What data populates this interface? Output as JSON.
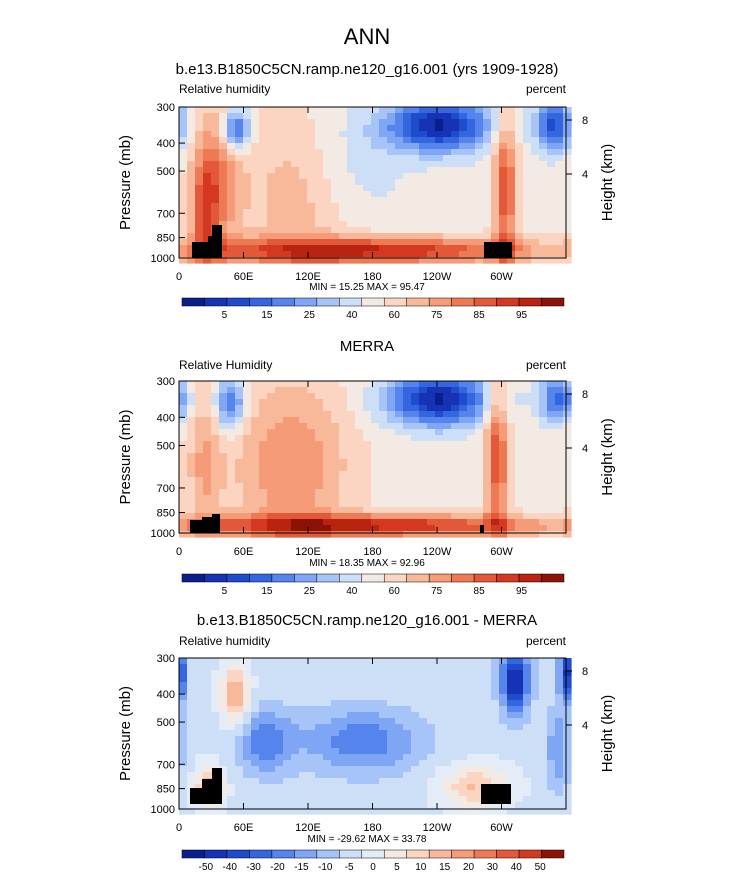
{
  "page": {
    "title": "ANN"
  },
  "chart_data": [
    {
      "type": "heatmap",
      "title": "b.e13.B1850C5CN.ramp.ne120_g16.001 (yrs 1909-1928)",
      "left_label": "Relative humidity",
      "right_label": "percent",
      "ylabel": "Pressure (mb)",
      "ylabel_right": "Height (km)",
      "yticks": [
        "300",
        "400",
        "500",
        "700",
        "850",
        "1000"
      ],
      "yticks_right": [
        "8",
        "4"
      ],
      "xticks": [
        "0",
        "60E",
        "120E",
        "180",
        "120W",
        "60W"
      ],
      "stats": "MIN =  15.25  MAX =  95.47",
      "colorbar": {
        "labels": [
          "5",
          "15",
          "25",
          "40",
          "60",
          "75",
          "85",
          "95"
        ],
        "colors": [
          "#0b1f8c",
          "#1533b4",
          "#1f4ccc",
          "#3466e0",
          "#5584ec",
          "#7ea6f5",
          "#a6c4f8",
          "#cddff7",
          "#f4eae4",
          "#fbd5c2",
          "#f8b99a",
          "#f59b77",
          "#ee7a55",
          "#e4583a",
          "#d43820",
          "#b82410",
          "#8d1206"
        ]
      },
      "values": "annual zonal-mean relative humidity cross-section (percent)"
    },
    {
      "type": "heatmap",
      "title": "MERRA",
      "left_label": "Relative Humidity",
      "right_label": "percent",
      "ylabel": "Pressure (mb)",
      "ylabel_right": "Height (km)",
      "yticks": [
        "300",
        "400",
        "500",
        "700",
        "850",
        "1000"
      ],
      "yticks_right": [
        "8",
        "4"
      ],
      "xticks": [
        "0",
        "60E",
        "120E",
        "180",
        "120W",
        "60W"
      ],
      "stats": "MIN =  18.35  MAX =  92.96",
      "colorbar": {
        "labels": [
          "5",
          "15",
          "25",
          "40",
          "60",
          "75",
          "85",
          "95"
        ],
        "colors": [
          "#0b1f8c",
          "#1533b4",
          "#1f4ccc",
          "#3466e0",
          "#5584ec",
          "#7ea6f5",
          "#a6c4f8",
          "#cddff7",
          "#f4eae4",
          "#fbd5c2",
          "#f8b99a",
          "#f59b77",
          "#ee7a55",
          "#e4583a",
          "#d43820",
          "#b82410",
          "#8d1206"
        ]
      }
    },
    {
      "type": "heatmap",
      "title": "b.e13.B1850C5CN.ramp.ne120_g16.001 - MERRA",
      "left_label": "Relative humidity",
      "right_label": "percent",
      "ylabel": "Pressure (mb)",
      "ylabel_right": "Height (km)",
      "yticks": [
        "300",
        "400",
        "500",
        "700",
        "850",
        "1000"
      ],
      "yticks_right": [
        "8",
        "4"
      ],
      "xticks": [
        "0",
        "60E",
        "120E",
        "180",
        "120W",
        "60W"
      ],
      "stats": "MIN = -29.62  MAX =  33.78",
      "colorbar": {
        "labels": [
          "-50",
          "-40",
          "-30",
          "-20",
          "-15",
          "-10",
          "-5",
          "0",
          "5",
          "10",
          "15",
          "20",
          "30",
          "40",
          "50"
        ],
        "colors": [
          "#0b1f8c",
          "#1533b4",
          "#1f4ccc",
          "#3466e0",
          "#5584ec",
          "#7ea6f5",
          "#a6c4f8",
          "#cddff7",
          "#e3ecf7",
          "#f4eae4",
          "#fbd5c2",
          "#f8b99a",
          "#f59b77",
          "#ee7a55",
          "#e4583a",
          "#d43820",
          "#8d1206"
        ]
      }
    }
  ]
}
